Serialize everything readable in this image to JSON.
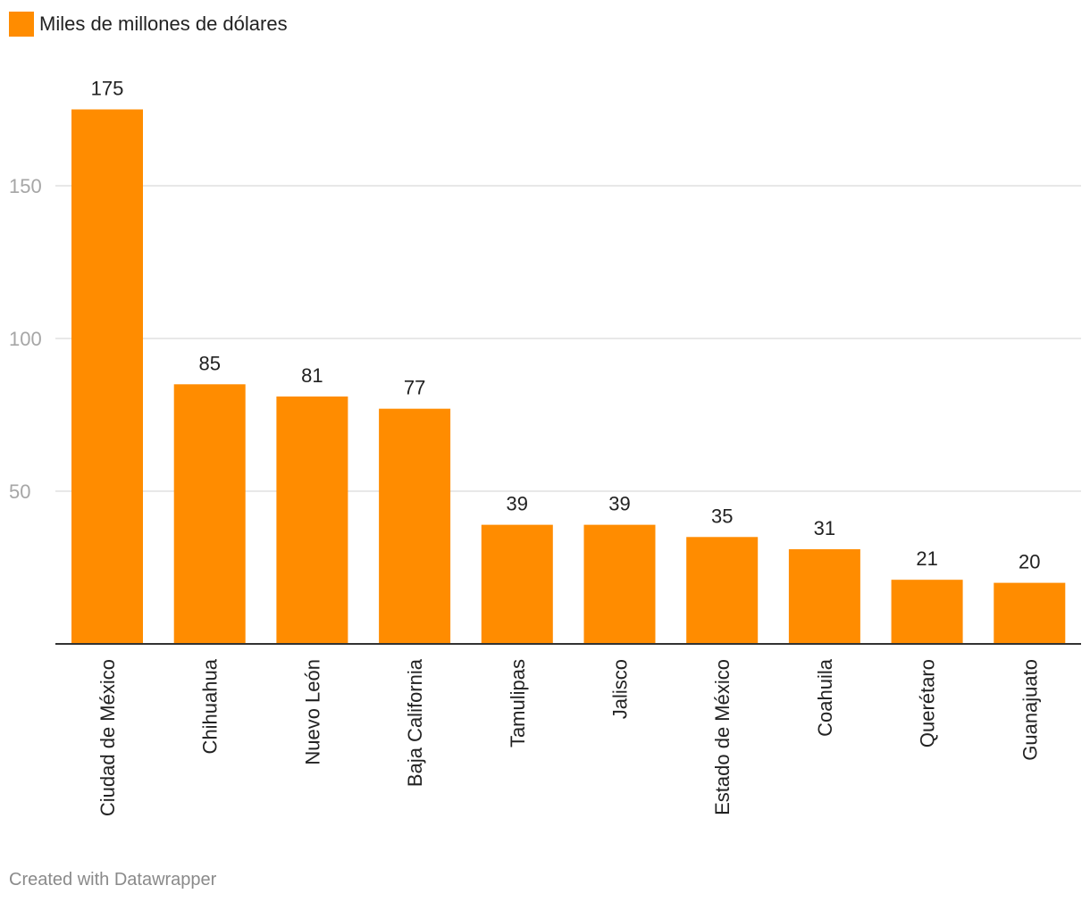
{
  "chart_data": {
    "type": "bar",
    "categories": [
      "Ciudad de México",
      "Chihuahua",
      "Nuevo León",
      "Baja California",
      "Tamulipas",
      "Jalisco",
      "Estado de México",
      "Coahuila",
      "Querétaro",
      "Guanajuato"
    ],
    "series": [
      {
        "name": "Miles de millones de dólares",
        "values": [
          175,
          85,
          81,
          77,
          39,
          39,
          35,
          31,
          21,
          20
        ],
        "color": "#ff8c00"
      }
    ],
    "y_ticks": [
      50,
      100,
      150
    ],
    "ylim": [
      0,
      175
    ],
    "grid": true,
    "legend_position": "top-left",
    "show_value_labels": true
  },
  "footer": {
    "credit": "Created with Datawrapper"
  },
  "colors": {
    "bar": "#ff8c00",
    "grid": "#e0e0e0",
    "axis": "#333333"
  }
}
